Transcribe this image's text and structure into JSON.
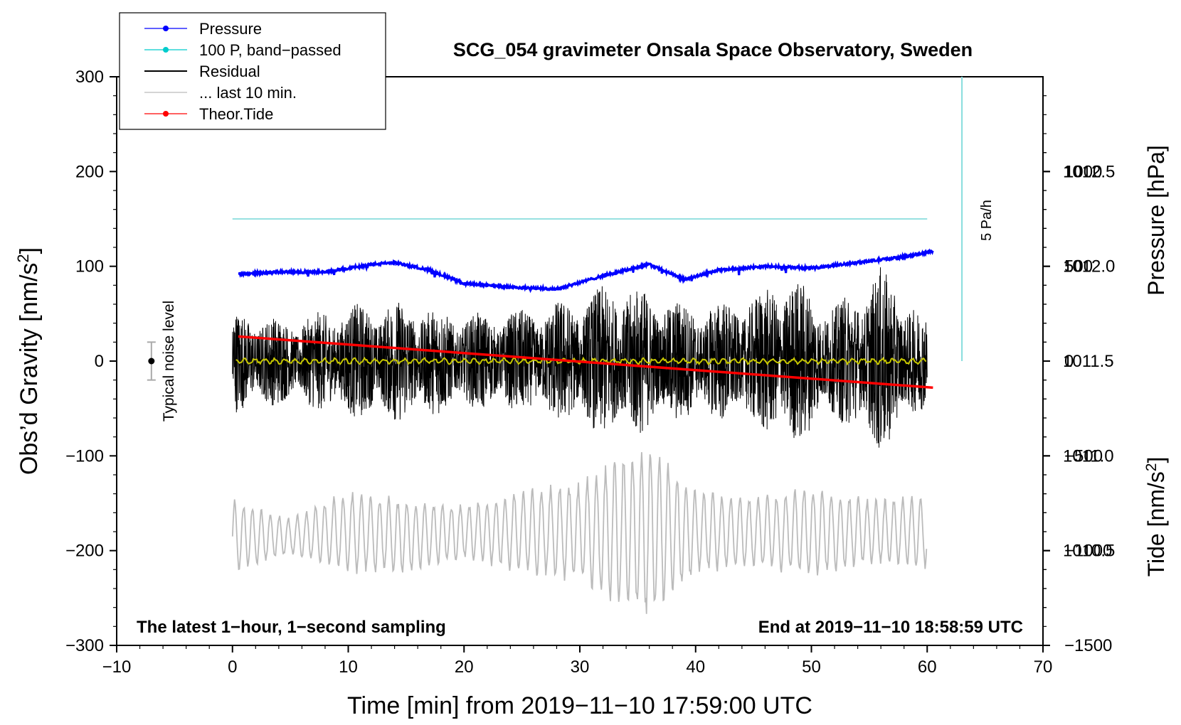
{
  "chart_data": {
    "type": "line",
    "title": "SCG_054 gravimeter Onsala Space Observatory, Sweden",
    "xlabel": "Time [min] from 2019−11−10 17:59:00 UTC",
    "ylabel_left": "Obs’d Gravity [nm/s²]",
    "ylabel_right_top": "Pressure [hPa]",
    "ylabel_right_bottom": "Tide [nm/s²]",
    "xlim": [
      -10,
      70
    ],
    "ylim_left": [
      -300,
      300
    ],
    "pressure_ylim": [
      1010.0,
      1013.0
    ],
    "tide_ylim": [
      -1500,
      1500
    ],
    "x_ticks": [
      -10,
      0,
      10,
      20,
      30,
      40,
      50,
      60,
      70
    ],
    "x_tick_labels": [
      "−10",
      "0",
      "10",
      "20",
      "30",
      "40",
      "50",
      "60",
      "70"
    ],
    "y_left_ticks": [
      300,
      200,
      100,
      0,
      -100,
      -200,
      -300
    ],
    "y_left_tick_labels": [
      "300",
      "200",
      "100",
      "0",
      "−100",
      "−200",
      "−300"
    ],
    "pressure_ticks": [
      1012.5,
      1012.0,
      1011.5,
      1011.0,
      1010.5
    ],
    "pressure_tick_labels": [
      "1012.5",
      "1012.0",
      "1011.5",
      "1011.0",
      "1010.5"
    ],
    "tide_ticks": [
      1000,
      500,
      0,
      -500,
      -1000,
      -1500
    ],
    "tide_tick_labels": [
      "1000",
      "500",
      "0",
      "−500",
      "−1000",
      "−1500"
    ],
    "legend": {
      "placement": "top-left",
      "entries": [
        {
          "label": "Pressure",
          "color": "#0000ff",
          "marker": true
        },
        {
          "label": "100 P, band−passed",
          "color": "#00cccc",
          "marker": true
        },
        {
          "label": "Residual",
          "color": "#000000",
          "marker": false
        },
        {
          "label": "... last 10 min.",
          "color": "#bbbbbb",
          "marker": false
        },
        {
          "label": "Theor.Tide",
          "color": "#ff0000",
          "marker": true
        }
      ]
    },
    "annotations": {
      "noise_label": "Typical noise level",
      "noise_level_gravity": 20,
      "noise_marker_x": -7,
      "rate_bar_label": "5 Pa/h",
      "rate_bar_x": 63,
      "rate_bar_gravity_range": [
        0,
        300
      ],
      "footer_left": "The latest 1−hour, 1−second sampling",
      "footer_right": "End at 2019−11−10 18:58:59 UTC"
    },
    "series": [
      {
        "name": "Pressure",
        "axis": "pressure",
        "color": "#0000ff",
        "x": [
          0.5,
          4,
          8,
          12,
          14,
          17,
          20,
          24,
          28,
          32,
          36,
          39,
          42,
          46,
          50,
          54,
          58,
          60.5
        ],
        "values": [
          1011.96,
          1011.97,
          1011.97,
          1012.01,
          1012.02,
          1011.98,
          1011.91,
          1011.89,
          1011.88,
          1011.95,
          1012.01,
          1011.93,
          1011.98,
          1012.0,
          1011.99,
          1012.02,
          1012.05,
          1012.08
        ]
      },
      {
        "name": "100 P, band−passed",
        "axis": "gravity",
        "color": "#00cccc",
        "x": [
          0,
          60
        ],
        "values": [
          150,
          150
        ]
      },
      {
        "name": "Residual",
        "axis": "gravity",
        "color": "#000000",
        "x": [
          0,
          5,
          10,
          15,
          20,
          25,
          30,
          33,
          36,
          40,
          45,
          48,
          52,
          56,
          60
        ],
        "envelope": [
          55,
          45,
          60,
          65,
          50,
          55,
          70,
          85,
          75,
          60,
          70,
          95,
          60,
          100,
          45
        ]
      },
      {
        "name": "Residual (smoothed)",
        "axis": "gravity",
        "color": "#c8c800",
        "x": [
          0,
          60
        ],
        "values": [
          0,
          0
        ]
      },
      {
        "name": "... last 10 min.",
        "axis": "gravity",
        "color": "#bbbbbb",
        "x": [
          0,
          5,
          10,
          15,
          20,
          25,
          30,
          33,
          36,
          40,
          45,
          50,
          55,
          60
        ],
        "center": [
          -185,
          -185,
          -180,
          -185,
          -180,
          -180,
          -180,
          -180,
          -180,
          -180,
          -180,
          -180,
          -180,
          -180
        ],
        "envelope": [
          40,
          20,
          45,
          40,
          30,
          45,
          55,
          80,
          95,
          45,
          40,
          50,
          35,
          40
        ]
      },
      {
        "name": "Theor.Tide",
        "axis": "tide",
        "color": "#ff0000",
        "x": [
          0.5,
          60.5
        ],
        "values": [
          130,
          -140
        ]
      }
    ]
  }
}
